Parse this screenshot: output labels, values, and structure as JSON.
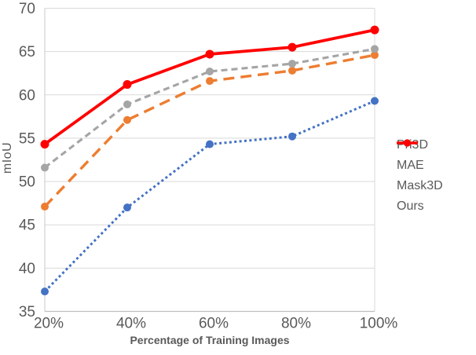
{
  "chart_data": {
    "type": "line",
    "title": "",
    "xlabel": "Percentage of Training Images",
    "ylabel": "mIoU",
    "categories": [
      "20%",
      "40%",
      "60%",
      "80%",
      "100%"
    ],
    "ylim": [
      35,
      70
    ],
    "y_ticks": [
      35,
      40,
      45,
      50,
      55,
      60,
      65,
      70
    ],
    "grid": "horizontal-only",
    "legend_position": "center-right",
    "axis_text_color": "#595959",
    "gridline_color": "#D9D9D9",
    "axis_line_color": "#BFBFBF",
    "series": [
      {
        "name": "Pri3D",
        "color": "#4472C4",
        "line_style": "dotted",
        "marker": "circle",
        "values": [
          37.3,
          47.0,
          54.3,
          55.2,
          59.3
        ]
      },
      {
        "name": "MAE",
        "color": "#ED7D31",
        "line_style": "long-dash",
        "marker": "circle",
        "values": [
          47.1,
          57.1,
          61.6,
          62.8,
          64.6
        ]
      },
      {
        "name": "Mask3D",
        "color": "#A5A5A5",
        "line_style": "dash",
        "marker": "circle",
        "values": [
          51.6,
          58.9,
          62.7,
          63.6,
          65.3
        ]
      },
      {
        "name": "Ours",
        "color": "#FF0000",
        "line_style": "solid",
        "marker": "circle",
        "values": [
          54.3,
          61.2,
          64.7,
          65.5,
          67.5
        ]
      }
    ]
  }
}
